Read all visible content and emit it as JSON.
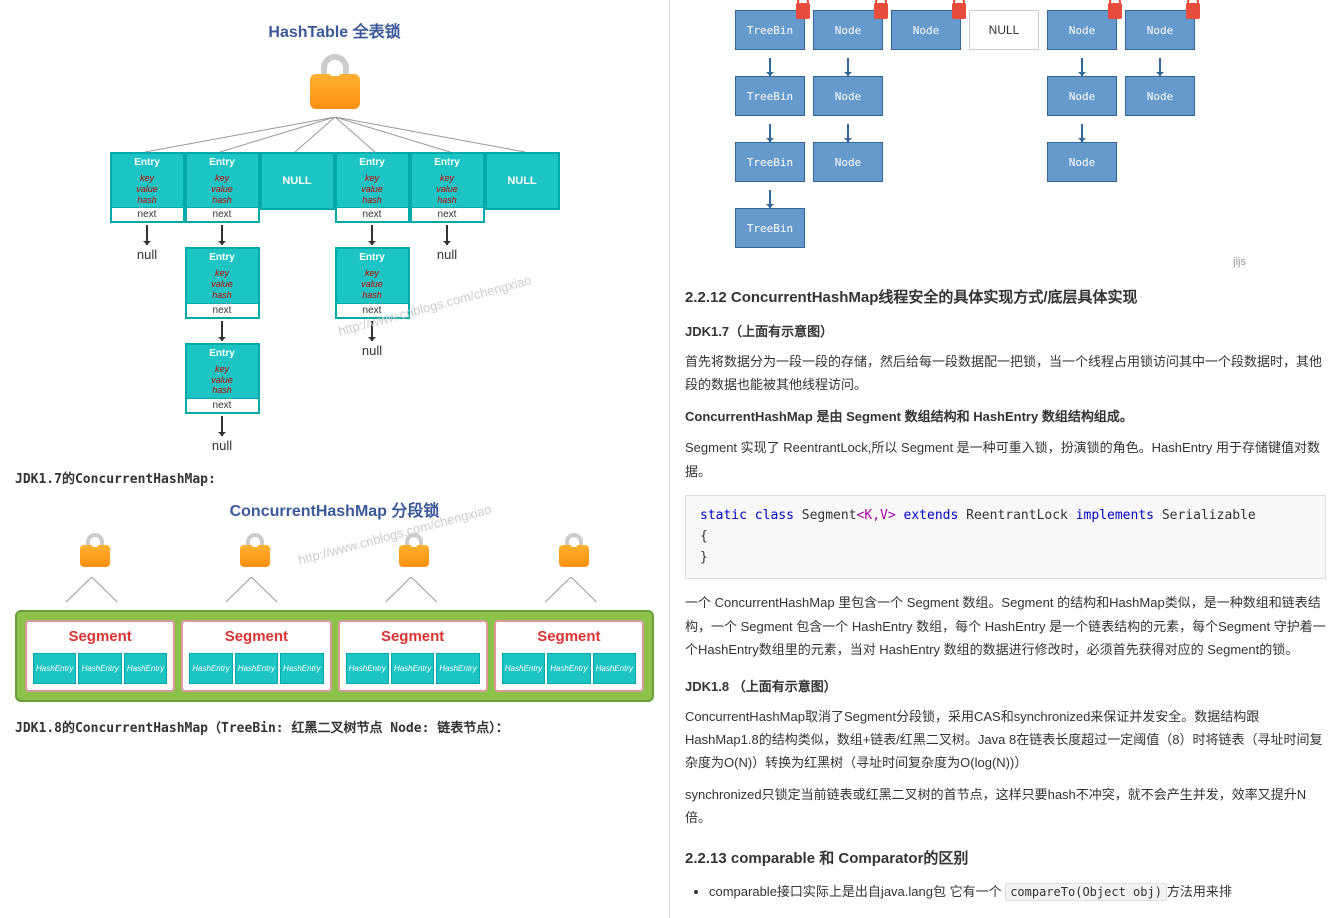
{
  "left": {
    "hashtable": {
      "title": "HashTable 全表锁",
      "title_color": "#3b5998",
      "lock_color_top": "#ffb030",
      "lock_color_bottom": "#ff9010",
      "entry_bg": "#1cc4c4",
      "entry_border": "#0aa",
      "entry_label": "Entry",
      "entry_fields": [
        "key",
        "value",
        "hash"
      ],
      "next_label": "next",
      "null_label": "NULL",
      "null_text": "null",
      "row1": [
        "Entry",
        "Entry",
        "NULL",
        "Entry",
        "Entry",
        "NULL"
      ],
      "col_depths": [
        1,
        3,
        0,
        2,
        1,
        0
      ],
      "watermark": "http://www.cnblogs.com/chengxiao"
    },
    "caption1": "JDK1.7的ConcurrentHashMap:",
    "chm17": {
      "title": "ConcurrentHashMap 分段锁",
      "title_color": "#3b5998",
      "segment_label": "Segment",
      "segment_color": "#d33",
      "segment_bg": "#8bc34a",
      "hashentry_label": "HashEntry",
      "hashentry_bg": "#1cc4c4",
      "segments": 4,
      "entries_per_segment": 3,
      "watermark": "http://www.cnblogs.com/chengxiao"
    },
    "caption2": "JDK1.8的ConcurrentHashMap（TreeBin: 红黑二叉树节点 Node: 链表节点）："
  },
  "right": {
    "chm18": {
      "node_bg": "#6699cc",
      "node_border": "#336699",
      "lock_color": "#e74c3c",
      "null_label": "NULL",
      "watermark": "jijs",
      "columns": [
        {
          "head": "TreeBin",
          "chain": [
            "TreeBin",
            "TreeBin",
            "TreeBin"
          ]
        },
        {
          "head": "Node",
          "chain": [
            "Node",
            "Node"
          ]
        },
        {
          "head": "Node",
          "chain": []
        },
        {
          "head": "NULL",
          "chain": []
        },
        {
          "head": "Node",
          "chain": [
            "Node",
            "Node"
          ]
        },
        {
          "head": "Node",
          "chain": [
            "Node"
          ]
        }
      ]
    },
    "section_2_2_12": {
      "title": "2.2.12 ConcurrentHashMap线程安全的具体实现方式/底层具体实现",
      "jdk17_title": "JDK1.7（上面有示意图）",
      "jdk17_p1": "首先将数据分为一段一段的存储，然后给每一段数据配一把锁，当一个线程占用锁访问其中一个段数据时，其他段的数据也能被其他线程访问。",
      "jdk17_p2": "ConcurrentHashMap 是由 Segment 数组结构和 HashEntry 数组结构组成。",
      "jdk17_p3": "Segment 实现了 ReentrantLock,所以 Segment 是一种可重入锁，扮演锁的角色。HashEntry 用于存储键值对数据。",
      "code": {
        "kw1": "static class",
        "name": " Segment",
        "generic": "<K,V>",
        "kw2": "extends",
        "parent": " ReentrantLock ",
        "kw3": "implements",
        "iface": " Serializable"
      },
      "jdk17_p4": "一个 ConcurrentHashMap 里包含一个 Segment 数组。Segment 的结构和HashMap类似，是一种数组和链表结构，一个 Segment 包含一个 HashEntry 数组，每个 HashEntry 是一个链表结构的元素，每个Segment 守护着一个HashEntry数组里的元素，当对 HashEntry 数组的数据进行修改时，必须首先获得对应的 Segment的锁。",
      "jdk18_title": "JDK1.8 （上面有示意图）",
      "jdk18_p1": "ConcurrentHashMap取消了Segment分段锁，采用CAS和synchronized来保证并发安全。数据结构跟HashMap1.8的结构类似，数组+链表/红黑二叉树。Java 8在链表长度超过一定阈值（8）时将链表（寻址时间复杂度为O(N)）转换为红黑树（寻址时间复杂度为O(log(N))）",
      "jdk18_p2": "synchronized只锁定当前链表或红黑二叉树的首节点，这样只要hash不冲突，就不会产生并发，效率又提升N倍。"
    },
    "section_2_2_13": {
      "title": "2.2.13 comparable 和 Comparator的区别",
      "li1_pre": "comparable接口实际上是出自java.lang包 它有一个 ",
      "li1_code": "compareTo(Object obj)",
      "li1_post": "方法用来排"
    }
  }
}
